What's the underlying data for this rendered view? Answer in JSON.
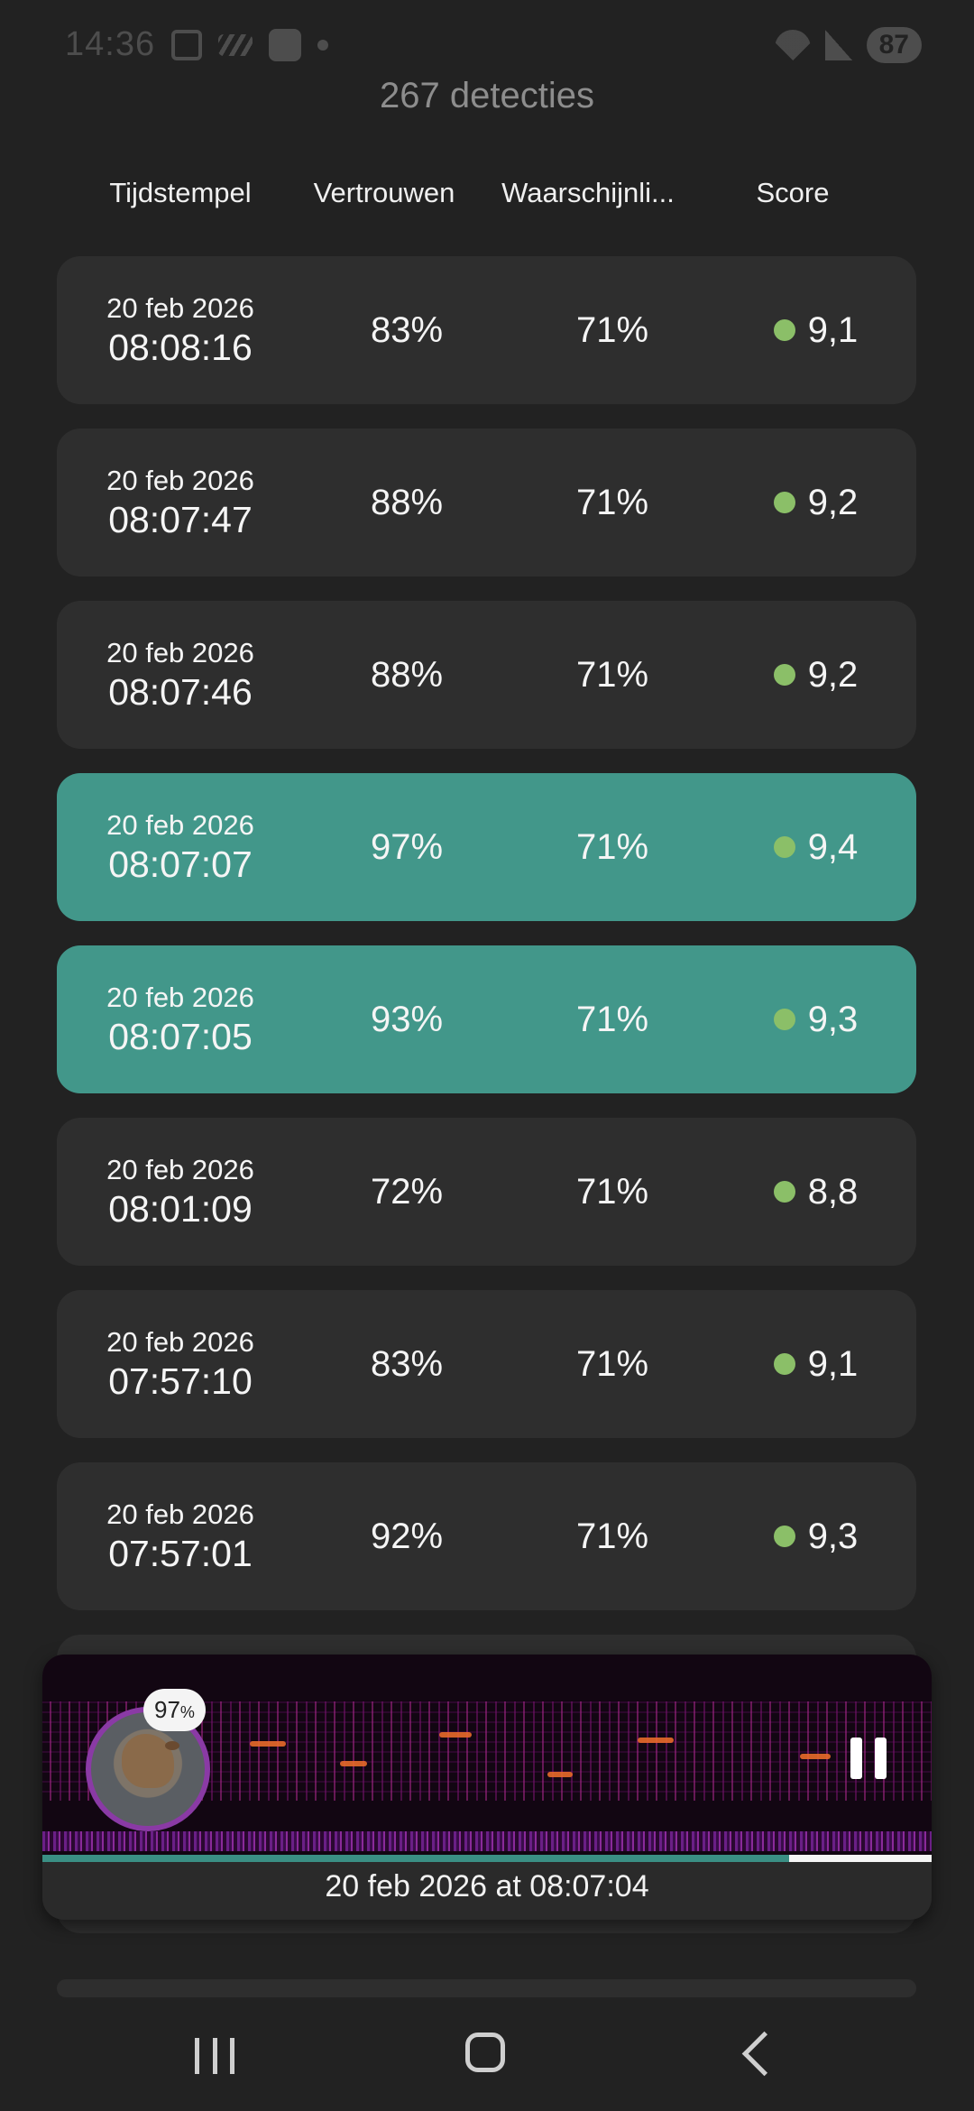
{
  "status_bar": {
    "time": "14:36",
    "battery": "87"
  },
  "header": {
    "title": "267 detecties"
  },
  "columns": {
    "timestamp": "Tijdstempel",
    "confidence": "Vertrouwen",
    "probability": "Waarschijnli...",
    "score": "Score"
  },
  "rows": [
    {
      "date": "20 feb 2026",
      "time": "08:08:16",
      "confidence": "83%",
      "probability": "71%",
      "score": "9,1",
      "highlighted": false
    },
    {
      "date": "20 feb 2026",
      "time": "08:07:47",
      "confidence": "88%",
      "probability": "71%",
      "score": "9,2",
      "highlighted": false
    },
    {
      "date": "20 feb 2026",
      "time": "08:07:46",
      "confidence": "88%",
      "probability": "71%",
      "score": "9,2",
      "highlighted": false
    },
    {
      "date": "20 feb 2026",
      "time": "08:07:07",
      "confidence": "97%",
      "probability": "71%",
      "score": "9,4",
      "highlighted": true
    },
    {
      "date": "20 feb 2026",
      "time": "08:07:05",
      "confidence": "93%",
      "probability": "71%",
      "score": "9,3",
      "highlighted": true
    },
    {
      "date": "20 feb 2026",
      "time": "08:01:09",
      "confidence": "72%",
      "probability": "71%",
      "score": "8,8",
      "highlighted": false
    },
    {
      "date": "20 feb 2026",
      "time": "07:57:10",
      "confidence": "83%",
      "probability": "71%",
      "score": "9,1",
      "highlighted": false
    },
    {
      "date": "20 feb 2026",
      "time": "07:57:01",
      "confidence": "92%",
      "probability": "71%",
      "score": "9,3",
      "highlighted": false
    }
  ],
  "player": {
    "badge_value": "97",
    "badge_unit": "%",
    "caption": "20 feb 2026 at 08:07:04",
    "progress": 0.84
  },
  "colors": {
    "highlight": "#42978a",
    "score_dot": "#8bbf68",
    "avatar_ring": "#8a3aa5"
  },
  "icons": {
    "status_left": [
      "screenshot-icon",
      "slash-icon",
      "layers-icon",
      "dot-icon"
    ],
    "status_right": [
      "wifi-icon",
      "signal-icon",
      "battery-icon"
    ],
    "player": [
      "bird-avatar",
      "pause-icon"
    ],
    "navbar": [
      "recent-apps-icon",
      "home-icon",
      "back-icon"
    ]
  }
}
